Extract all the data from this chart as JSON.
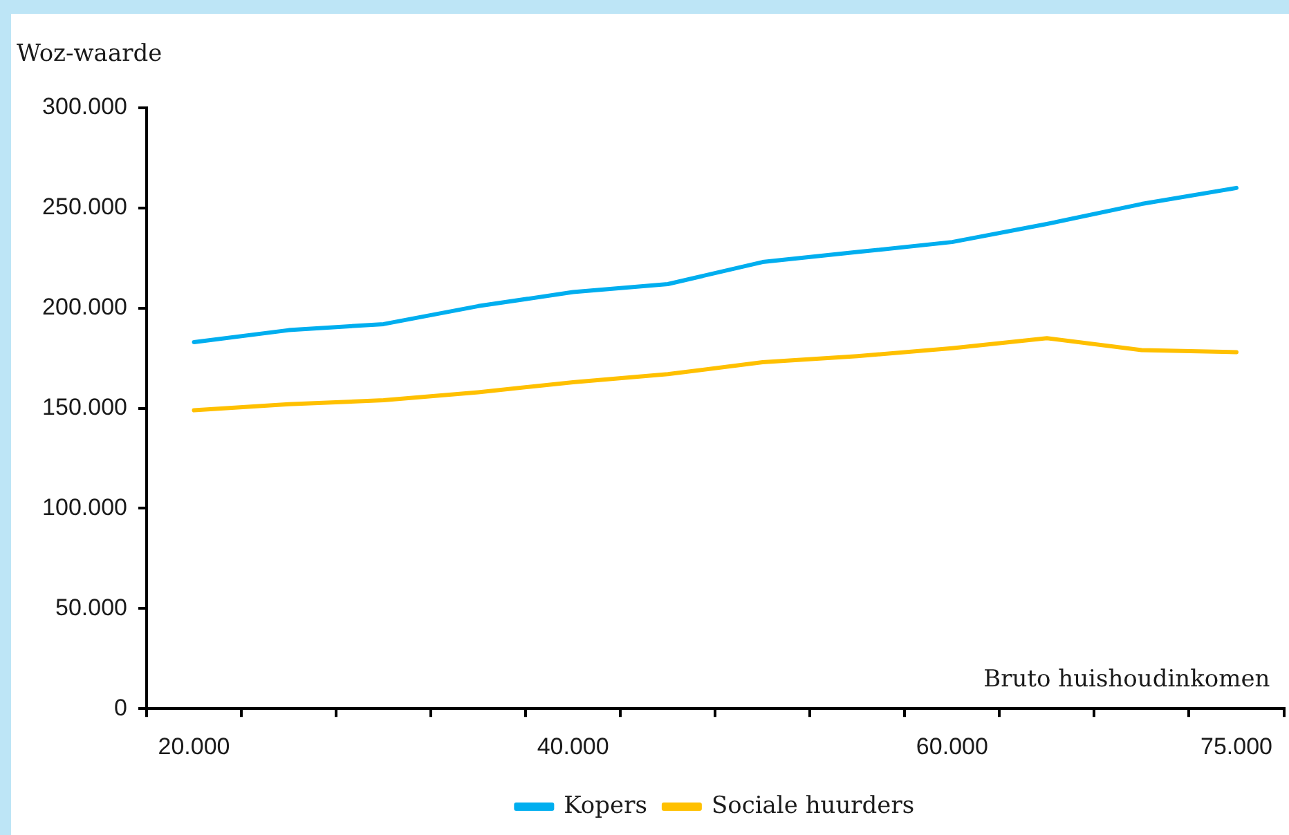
{
  "chart_data": {
    "type": "line",
    "ylabel": "Woz-waarde",
    "xlabel": "Bruto huishoudinkomen",
    "categories": [
      "20.000",
      null,
      null,
      null,
      "40.000",
      null,
      null,
      null,
      "60.000",
      null,
      null,
      "75.000"
    ],
    "series": [
      {
        "name": "Kopers",
        "color": "#00aeef",
        "values": [
          183000,
          189000,
          192000,
          201000,
          208000,
          212000,
          223000,
          228000,
          233000,
          242000,
          252000,
          260000
        ]
      },
      {
        "name": "Sociale huurders",
        "color": "#ffc000",
        "values": [
          149000,
          152000,
          154000,
          158000,
          163000,
          167000,
          173000,
          176000,
          180000,
          185000,
          179000,
          178000
        ]
      }
    ],
    "ylim": [
      0,
      300000
    ],
    "yticks": [
      {
        "value": 0,
        "label": "0"
      },
      {
        "value": 50000,
        "label": "50.000"
      },
      {
        "value": 100000,
        "label": "100.000"
      },
      {
        "value": 150000,
        "label": "150.000"
      },
      {
        "value": 200000,
        "label": "200.000"
      },
      {
        "value": 250000,
        "label": "250.000"
      },
      {
        "value": 300000,
        "label": "300.000"
      }
    ],
    "legend": "bottom",
    "marker": "none",
    "line_style": "solid"
  }
}
